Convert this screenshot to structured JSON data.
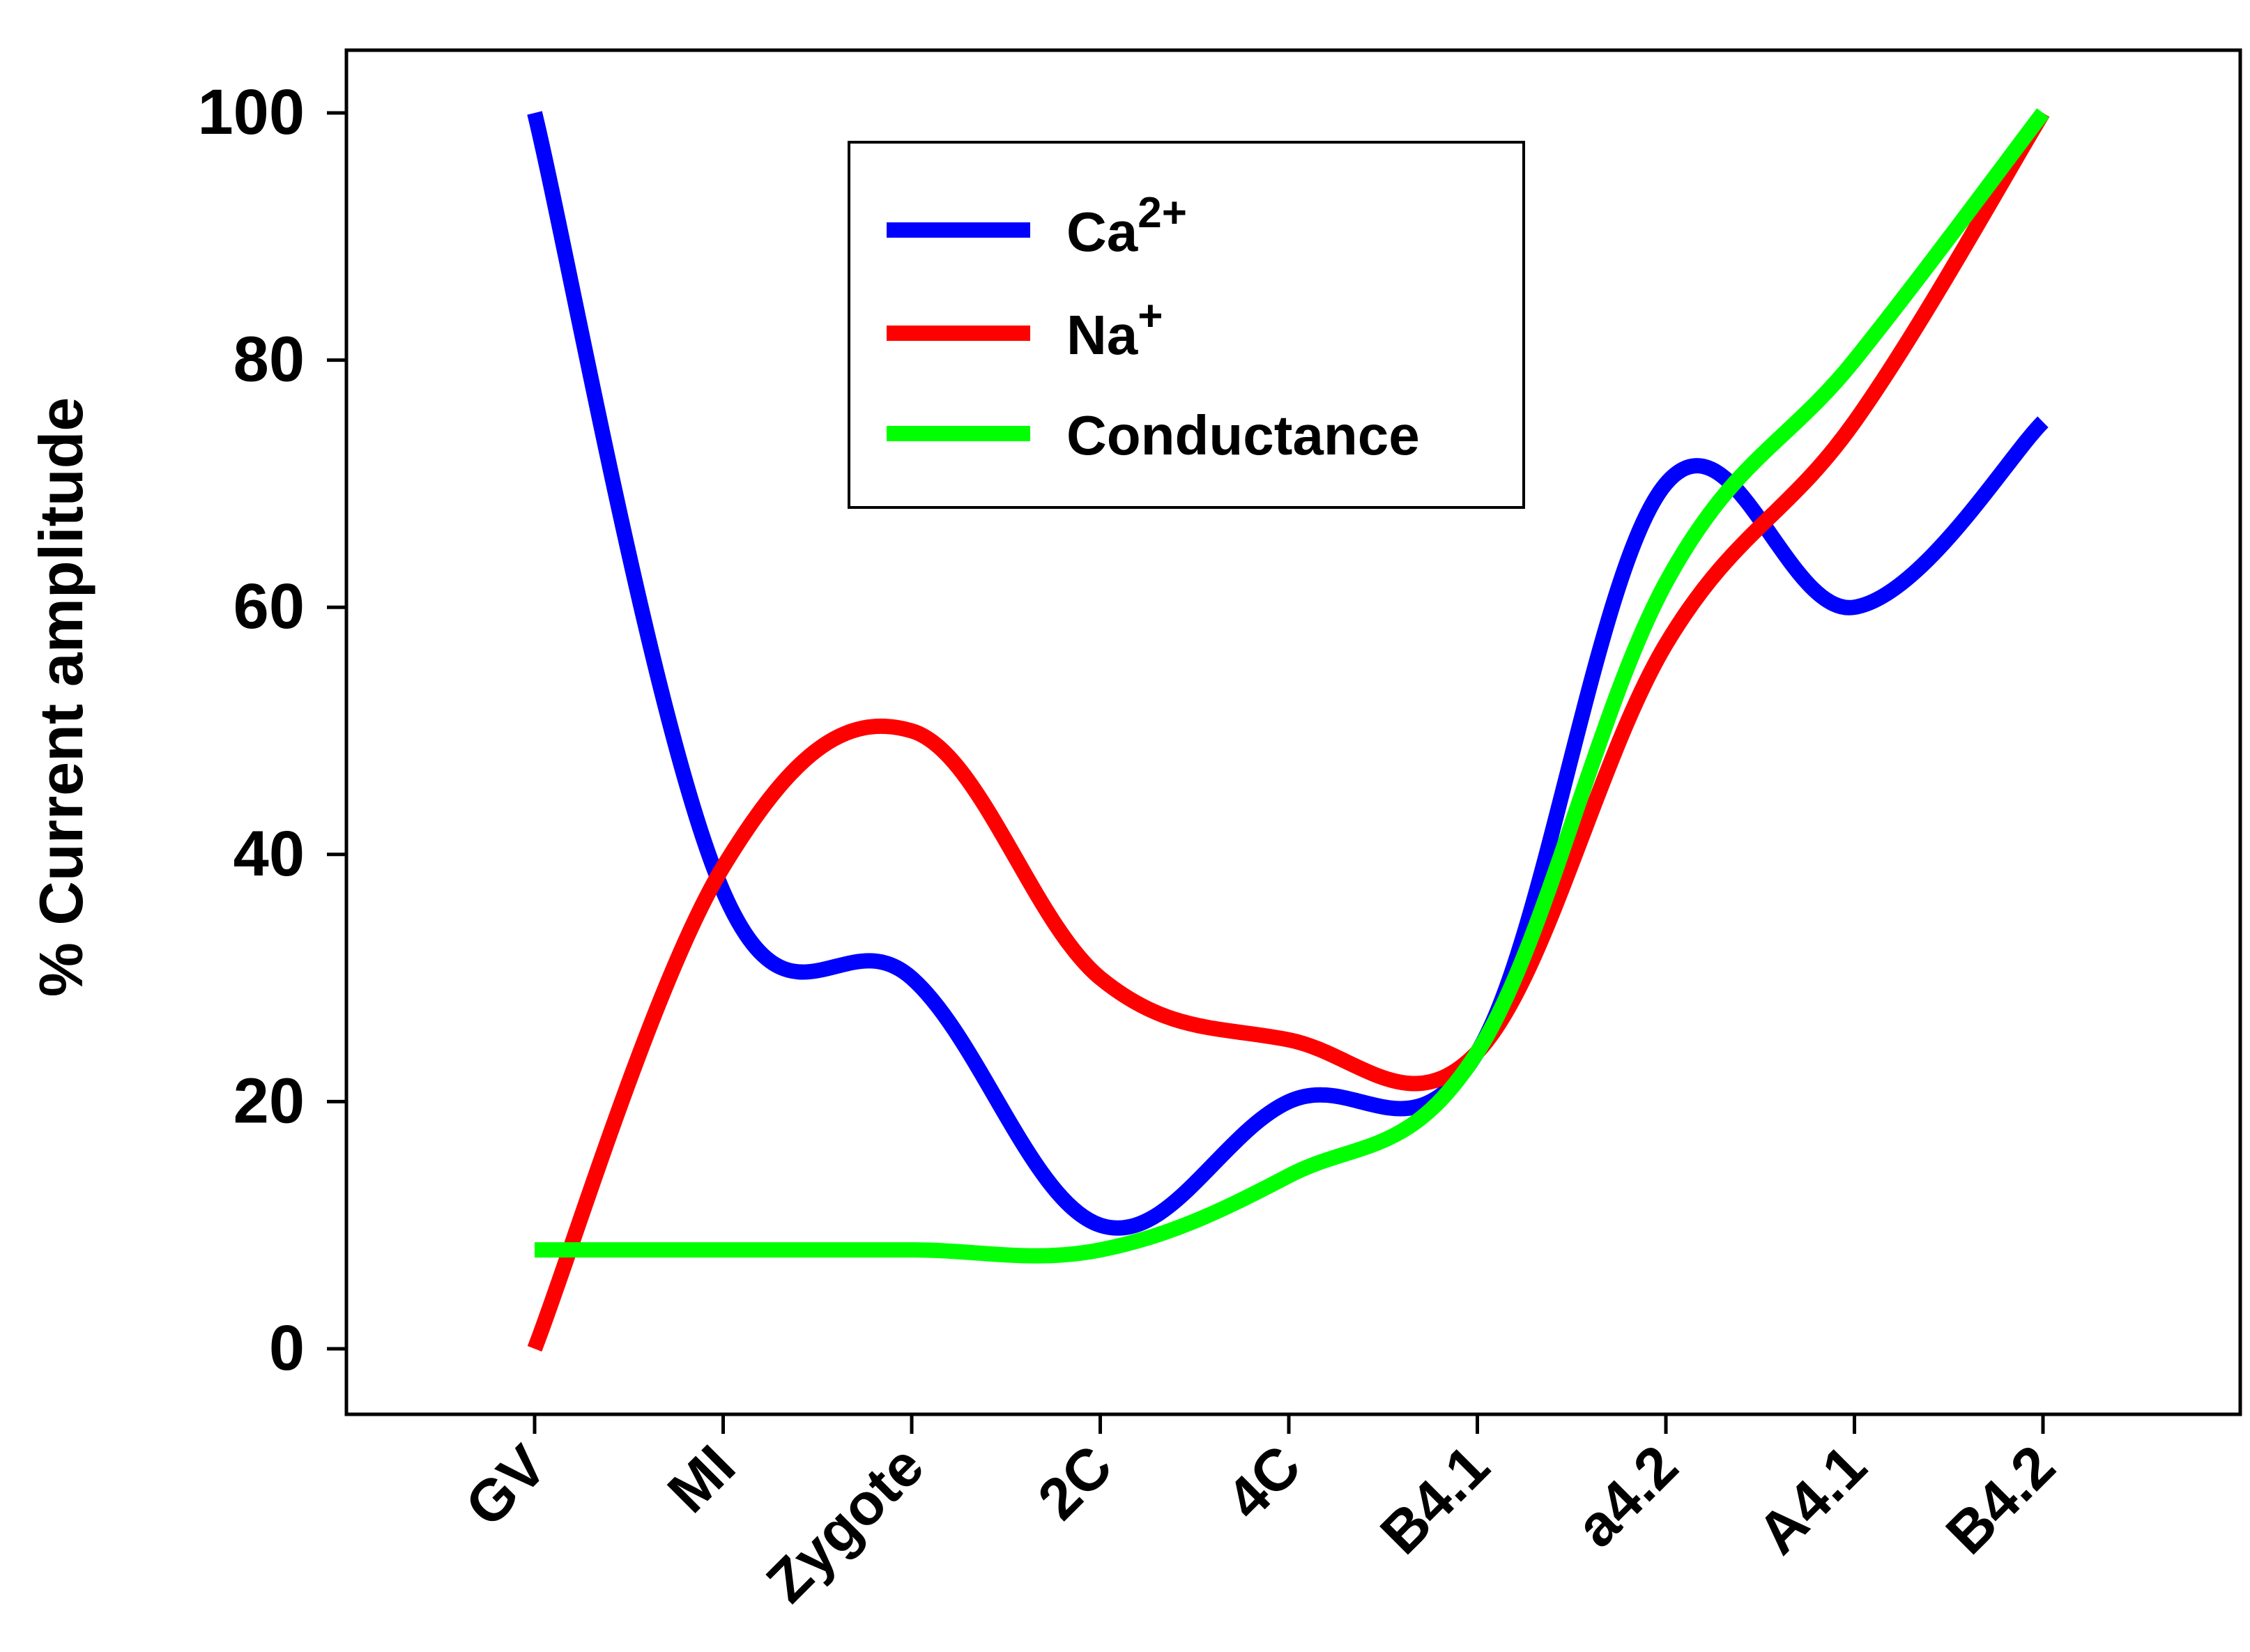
{
  "chart_data": {
    "type": "line",
    "title": "",
    "xlabel": "",
    "ylabel": "%  Current amplitude",
    "categories": [
      "GV",
      "MI",
      "Zygote",
      "2C",
      "4C",
      "B4.1",
      "a4.2",
      "A4.1",
      "B4.2"
    ],
    "ylim": [
      0,
      100
    ],
    "yticks": [
      "0",
      "20",
      "40",
      "60",
      "80",
      "100"
    ],
    "grid": false,
    "legend_position": "top-center",
    "series": [
      {
        "name": "Ca",
        "superscript": "2+",
        "color": "#0000ff",
        "values": [
          100,
          37,
          30,
          10,
          20,
          24,
          70,
          60,
          75
        ]
      },
      {
        "name": "Na",
        "superscript": "+",
        "color": "#ff0000",
        "values": [
          0,
          39,
          50,
          30,
          25,
          24,
          57,
          75,
          100
        ]
      },
      {
        "name": "Conductance",
        "superscript": "",
        "color": "#00ff00",
        "values": [
          8,
          8,
          8,
          8,
          14,
          24,
          62,
          80,
          100
        ]
      }
    ]
  }
}
